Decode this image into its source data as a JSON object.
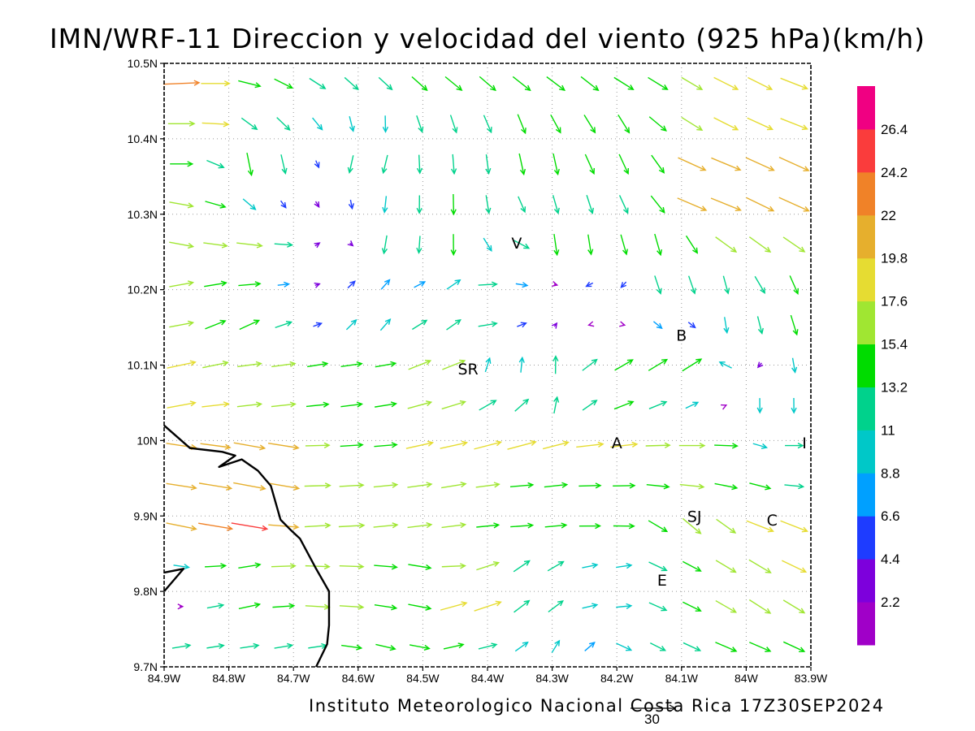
{
  "title": "IMN/WRF-11 Direccion y velocidad del viento (925 hPa)(km/h)",
  "footer": "Instituto Meteorologico Nacional Costa Rica 17Z30SEP2024",
  "reference_vector": {
    "label": "30",
    "value": 30
  },
  "map": {
    "lon_range": [
      -84.9,
      -83.9
    ],
    "lat_range": [
      9.7,
      10.5
    ],
    "lon_ticks": [
      {
        "value": -84.9,
        "label": "84.9W"
      },
      {
        "value": -84.8,
        "label": "84.8W"
      },
      {
        "value": -84.7,
        "label": "84.7W"
      },
      {
        "value": -84.6,
        "label": "84.6W"
      },
      {
        "value": -84.5,
        "label": "84.5W"
      },
      {
        "value": -84.4,
        "label": "84.4W"
      },
      {
        "value": -84.3,
        "label": "84.3W"
      },
      {
        "value": -84.2,
        "label": "84.2W"
      },
      {
        "value": -84.1,
        "label": "84.1W"
      },
      {
        "value": -84.0,
        "label": "84W"
      },
      {
        "value": -83.9,
        "label": "83.9W"
      }
    ],
    "lat_ticks": [
      {
        "value": 9.7,
        "label": "9.7N"
      },
      {
        "value": 9.8,
        "label": "9.8N"
      },
      {
        "value": 9.9,
        "label": "9.9N"
      },
      {
        "value": 10.0,
        "label": "10N"
      },
      {
        "value": 10.1,
        "label": "10.1N"
      },
      {
        "value": 10.2,
        "label": "10.2N"
      },
      {
        "value": 10.3,
        "label": "10.3N"
      },
      {
        "value": 10.4,
        "label": "10.4N"
      },
      {
        "value": 10.5,
        "label": "10.5N"
      }
    ],
    "places": [
      {
        "label": "V",
        "lon": -84.355,
        "lat": 10.262
      },
      {
        "label": "SR",
        "lon": -84.43,
        "lat": 10.095
      },
      {
        "label": "B",
        "lon": -84.1,
        "lat": 10.14
      },
      {
        "label": "A",
        "lon": -84.2,
        "lat": 9.997
      },
      {
        "label": "I",
        "lon": -83.91,
        "lat": 9.997
      },
      {
        "label": "SJ",
        "lon": -84.08,
        "lat": 9.9
      },
      {
        "label": "C",
        "lon": -83.96,
        "lat": 9.895
      },
      {
        "label": "E",
        "lon": -84.13,
        "lat": 9.815
      }
    ],
    "coastline": [
      [
        [
          -84.9,
          10.02
        ],
        [
          -84.86,
          9.99
        ],
        [
          -84.81,
          9.985
        ],
        [
          -84.79,
          9.98
        ],
        [
          -84.815,
          9.965
        ],
        [
          -84.78,
          9.975
        ],
        [
          -84.755,
          9.96
        ],
        [
          -84.735,
          9.94
        ],
        [
          -84.72,
          9.895
        ],
        [
          -84.705,
          9.882
        ],
        [
          -84.69,
          9.87
        ],
        [
          -84.665,
          9.83
        ],
        [
          -84.645,
          9.8
        ],
        [
          -84.645,
          9.755
        ],
        [
          -84.648,
          9.73
        ],
        [
          -84.665,
          9.7
        ]
      ],
      [
        [
          -84.9,
          9.825
        ],
        [
          -84.87,
          9.83
        ],
        [
          -84.9,
          9.8
        ]
      ]
    ]
  },
  "colorbar": {
    "colors": [
      "#a000c8",
      "#7d00dc",
      "#1e3cff",
      "#00a0ff",
      "#00c8c8",
      "#00d28c",
      "#00dc00",
      "#a0e632",
      "#e6dc32",
      "#e6af2d",
      "#f08228",
      "#fa3c3c",
      "#f00082"
    ],
    "labels": [
      "2.2",
      "4.4",
      "6.6",
      "8.8",
      "11",
      "13.2",
      "15.4",
      "17.6",
      "19.8",
      "22",
      "24.2",
      "26.4"
    ]
  },
  "wind_field": {
    "units": "km/h",
    "grid": {
      "nx": 19,
      "ny": 15
    },
    "seed_points": [
      {
        "lon": -84.88,
        "lat": 10.47,
        "u": 24,
        "v": 1
      },
      {
        "lon": -84.82,
        "lat": 10.46,
        "u": 19,
        "v": 0
      },
      {
        "lon": -84.72,
        "lat": 10.47,
        "u": 12,
        "v": -6
      },
      {
        "lon": -84.6,
        "lat": 10.47,
        "u": 9,
        "v": -8
      },
      {
        "lon": -84.45,
        "lat": 10.47,
        "u": 11,
        "v": -9
      },
      {
        "lon": -84.3,
        "lat": 10.47,
        "u": 12,
        "v": -9
      },
      {
        "lon": -84.15,
        "lat": 10.47,
        "u": 13,
        "v": -8
      },
      {
        "lon": -84.0,
        "lat": 10.47,
        "u": 16,
        "v": -8
      },
      {
        "lon": -83.92,
        "lat": 10.45,
        "u": 18,
        "v": -7
      },
      {
        "lon": -84.88,
        "lat": 10.38,
        "u": 15,
        "v": 0
      },
      {
        "lon": -84.75,
        "lat": 10.37,
        "u": 3,
        "v": -15
      },
      {
        "lon": -84.68,
        "lat": 10.34,
        "u": 2,
        "v": -4
      },
      {
        "lon": -84.58,
        "lat": 10.38,
        "u": -3,
        "v": -12
      },
      {
        "lon": -84.45,
        "lat": 10.38,
        "u": 1,
        "v": -13
      },
      {
        "lon": -84.32,
        "lat": 10.38,
        "u": 3,
        "v": -14
      },
      {
        "lon": -84.2,
        "lat": 10.38,
        "u": 6,
        "v": -13
      },
      {
        "lon": -84.05,
        "lat": 10.33,
        "u": 20,
        "v": -8
      },
      {
        "lon": -83.92,
        "lat": 10.33,
        "u": 20,
        "v": -9
      },
      {
        "lon": -84.88,
        "lat": 10.28,
        "u": 16,
        "v": -3
      },
      {
        "lon": -84.76,
        "lat": 10.25,
        "u": 17,
        "v": -2
      },
      {
        "lon": -84.66,
        "lat": 10.26,
        "u": 3,
        "v": 2
      },
      {
        "lon": -84.55,
        "lat": 10.27,
        "u": -2,
        "v": -12
      },
      {
        "lon": -84.45,
        "lat": 10.28,
        "u": 0,
        "v": -14
      },
      {
        "lon": -84.35,
        "lat": 10.24,
        "u": 10,
        "v": -5
      },
      {
        "lon": -84.28,
        "lat": 10.26,
        "u": 2,
        "v": -14
      },
      {
        "lon": -84.15,
        "lat": 10.25,
        "u": 4,
        "v": -14
      },
      {
        "lon": -84.0,
        "lat": 10.25,
        "u": 14,
        "v": -10
      },
      {
        "lon": -84.88,
        "lat": 10.18,
        "u": 16,
        "v": 3
      },
      {
        "lon": -84.78,
        "lat": 10.16,
        "u": 13,
        "v": 6
      },
      {
        "lon": -84.66,
        "lat": 10.2,
        "u": 3,
        "v": 1
      },
      {
        "lon": -84.58,
        "lat": 10.18,
        "u": 6,
        "v": 8
      },
      {
        "lon": -84.46,
        "lat": 10.18,
        "u": 9,
        "v": 7
      },
      {
        "lon": -84.38,
        "lat": 10.18,
        "u": 14,
        "v": 1
      },
      {
        "lon": -84.32,
        "lat": 10.18,
        "u": 1,
        "v": 2
      },
      {
        "lon": -84.22,
        "lat": 10.19,
        "u": -5,
        "v": -2
      },
      {
        "lon": -84.12,
        "lat": 10.2,
        "u": 4,
        "v": -12
      },
      {
        "lon": -84.02,
        "lat": 10.18,
        "u": 2,
        "v": -12
      },
      {
        "lon": -83.93,
        "lat": 10.16,
        "u": 4,
        "v": -13
      },
      {
        "lon": -84.88,
        "lat": 10.08,
        "u": 19,
        "v": 4
      },
      {
        "lon": -84.75,
        "lat": 10.08,
        "u": 16,
        "v": 2
      },
      {
        "lon": -84.6,
        "lat": 10.09,
        "u": 14,
        "v": 2
      },
      {
        "lon": -84.47,
        "lat": 10.1,
        "u": 15,
        "v": 6
      },
      {
        "lon": -84.36,
        "lat": 10.1,
        "u": 1,
        "v": 10
      },
      {
        "lon": -84.3,
        "lat": 10.08,
        "u": 0,
        "v": 12
      },
      {
        "lon": -84.2,
        "lat": 10.1,
        "u": 12,
        "v": 7
      },
      {
        "lon": -84.1,
        "lat": 10.1,
        "u": 13,
        "v": 8
      },
      {
        "lon": -84.04,
        "lat": 10.1,
        "u": -8,
        "v": 4
      },
      {
        "lon": -83.95,
        "lat": 10.05,
        "u": 0,
        "v": -10
      },
      {
        "lon": -84.88,
        "lat": 9.98,
        "u": 20,
        "v": -3
      },
      {
        "lon": -84.75,
        "lat": 9.96,
        "u": 21,
        "v": -4
      },
      {
        "lon": -84.6,
        "lat": 9.99,
        "u": 15,
        "v": 1
      },
      {
        "lon": -84.47,
        "lat": 10.0,
        "u": 18,
        "v": 4
      },
      {
        "lon": -84.35,
        "lat": 10.0,
        "u": 19,
        "v": 5
      },
      {
        "lon": -84.22,
        "lat": 9.99,
        "u": 18,
        "v": 2
      },
      {
        "lon": -84.08,
        "lat": 9.98,
        "u": 17,
        "v": 0
      },
      {
        "lon": -83.92,
        "lat": 9.98,
        "u": 12,
        "v": 0
      },
      {
        "lon": -84.88,
        "lat": 9.88,
        "u": 20,
        "v": -4
      },
      {
        "lon": -84.78,
        "lat": 9.9,
        "u": 24,
        "v": -4
      },
      {
        "lon": -84.65,
        "lat": 9.9,
        "u": 17,
        "v": 1
      },
      {
        "lon": -84.5,
        "lat": 9.9,
        "u": 16,
        "v": 2
      },
      {
        "lon": -84.35,
        "lat": 9.91,
        "u": 15,
        "v": 1
      },
      {
        "lon": -84.22,
        "lat": 9.91,
        "u": 14,
        "v": 0
      },
      {
        "lon": -84.08,
        "lat": 9.88,
        "u": 12,
        "v": -10
      },
      {
        "lon": -83.95,
        "lat": 9.88,
        "u": 18,
        "v": -7
      },
      {
        "lon": -84.88,
        "lat": 9.79,
        "u": 2,
        "v": 0
      },
      {
        "lon": -84.78,
        "lat": 9.8,
        "u": 14,
        "v": 3
      },
      {
        "lon": -84.65,
        "lat": 9.79,
        "u": 16,
        "v": -1
      },
      {
        "lon": -84.5,
        "lat": 9.8,
        "u": 15,
        "v": -3
      },
      {
        "lon": -84.42,
        "lat": 9.78,
        "u": 18,
        "v": 6
      },
      {
        "lon": -84.33,
        "lat": 9.8,
        "u": 10,
        "v": 8
      },
      {
        "lon": -84.22,
        "lat": 9.81,
        "u": 10,
        "v": 2
      },
      {
        "lon": -84.1,
        "lat": 9.81,
        "u": 12,
        "v": -6
      },
      {
        "lon": -83.98,
        "lat": 9.8,
        "u": 14,
        "v": -9
      },
      {
        "lon": -84.88,
        "lat": 9.72,
        "u": 12,
        "v": 2
      },
      {
        "lon": -84.7,
        "lat": 9.72,
        "u": 12,
        "v": 2
      },
      {
        "lon": -84.55,
        "lat": 9.72,
        "u": 13,
        "v": -3
      },
      {
        "lon": -84.4,
        "lat": 9.73,
        "u": 12,
        "v": 3
      },
      {
        "lon": -84.3,
        "lat": 9.72,
        "u": 5,
        "v": 8
      },
      {
        "lon": -84.15,
        "lat": 9.72,
        "u": 10,
        "v": -5
      },
      {
        "lon": -84.0,
        "lat": 9.72,
        "u": 14,
        "v": -6
      }
    ]
  }
}
